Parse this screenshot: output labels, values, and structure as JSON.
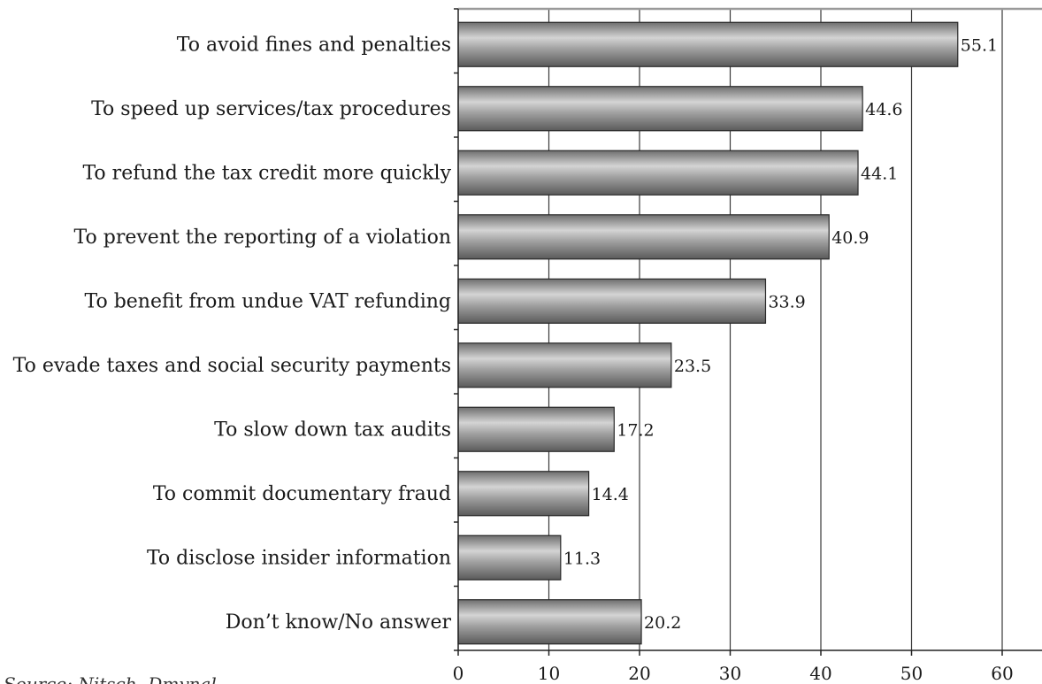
{
  "chart_data": {
    "type": "bar",
    "orientation": "horizontal",
    "categories": [
      "To avoid fines and penalties",
      "To speed up services/tax procedures",
      "To refund the tax credit more quickly",
      "To prevent the reporting of a violation",
      "To benefit from undue VAT refunding",
      "To evade taxes and social security payments",
      "To slow down tax audits",
      "To commit documentary fraud",
      "To disclose insider information",
      "Don’t know/No answer"
    ],
    "values": [
      55.1,
      44.6,
      44.1,
      40.9,
      33.9,
      23.5,
      17.2,
      14.4,
      11.3,
      20.2
    ],
    "value_labels": [
      "55.1",
      "44.6",
      "44.1",
      "40.9",
      "33.9",
      "23.5",
      "17.2",
      "14.4",
      "11.3",
      "20.2"
    ],
    "x_ticks": [
      "0",
      "10",
      "20",
      "30",
      "40",
      "50",
      "60"
    ],
    "xlim": [
      0,
      64
    ],
    "grid": "vertical",
    "bar_color": "#8c8c8c",
    "title": "",
    "xlabel": "",
    "ylabel": ""
  },
  "source_note": "Source: Nitsch, Dmynal"
}
